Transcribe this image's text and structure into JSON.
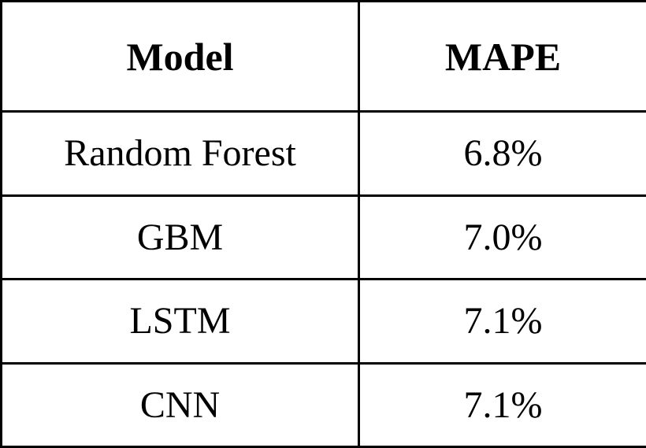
{
  "table": {
    "headers": [
      "Model",
      "MAPE"
    ],
    "rows": [
      {
        "model": "Random Forest",
        "mape": "6.8%"
      },
      {
        "model": "GBM",
        "mape": "7.0%"
      },
      {
        "model": "LSTM",
        "mape": "7.1%"
      },
      {
        "model": "CNN",
        "mape": "7.1%"
      }
    ]
  }
}
